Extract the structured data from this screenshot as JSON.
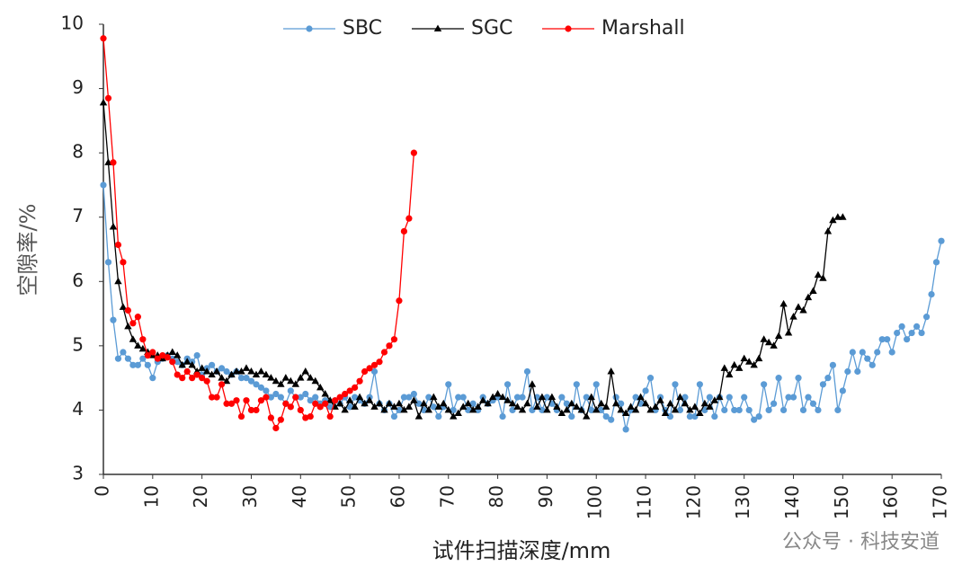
{
  "chart_data": {
    "type": "line",
    "y_label": "空隙率/%",
    "x_label": "试件扫描深度/mm",
    "watermark": "公众号 · 科技安道",
    "legend": "top",
    "grid": false,
    "xlim": [
      0,
      170
    ],
    "xticks": [
      0,
      10,
      20,
      30,
      40,
      50,
      60,
      70,
      80,
      90,
      100,
      110,
      120,
      130,
      140,
      150,
      160,
      170
    ],
    "ylim": [
      3,
      10
    ],
    "yticks": [
      3,
      4,
      5,
      6,
      7,
      8,
      9,
      10
    ],
    "x": [
      0,
      1,
      2,
      3,
      4,
      5,
      6,
      7,
      8,
      9,
      10,
      11,
      12,
      13,
      14,
      15,
      16,
      17,
      18,
      19,
      20,
      21,
      22,
      23,
      24,
      25,
      26,
      27,
      28,
      29,
      30,
      31,
      32,
      33,
      34,
      35,
      36,
      37,
      38,
      39,
      40,
      41,
      42,
      43,
      44,
      45,
      46,
      47,
      48,
      49,
      50,
      51,
      52,
      53,
      54,
      55,
      56,
      57,
      58,
      59,
      60,
      61,
      62,
      63,
      64,
      65,
      66,
      67,
      68,
      69,
      70,
      71,
      72,
      73,
      74,
      75,
      76,
      77,
      78,
      79,
      80,
      81,
      82,
      83,
      84,
      85,
      86,
      87,
      88,
      89,
      90,
      91,
      92,
      93,
      94,
      95,
      96,
      97,
      98,
      99,
      100,
      101,
      102,
      103,
      104,
      105,
      106,
      107,
      108,
      109,
      110,
      111,
      112,
      113,
      114,
      115,
      116,
      117,
      118,
      119,
      120,
      121,
      122,
      123,
      124,
      125,
      126,
      127,
      128,
      129,
      130,
      131,
      132,
      133,
      134,
      135,
      136,
      137,
      138,
      139,
      140,
      141,
      142,
      143,
      144,
      145,
      146,
      147,
      148,
      149,
      150,
      151,
      152,
      153,
      154,
      155,
      156,
      157,
      158,
      159,
      160,
      161,
      162,
      163,
      164,
      165,
      166,
      167,
      168,
      169,
      170
    ],
    "series": [
      {
        "name": "SBC",
        "color": "#5b9bd5",
        "marker": "circle",
        "values": [
          7.5,
          6.3,
          5.4,
          4.8,
          4.9,
          4.8,
          4.7,
          4.7,
          4.8,
          4.7,
          4.5,
          4.75,
          4.8,
          4.85,
          4.8,
          4.75,
          4.7,
          4.8,
          4.75,
          4.85,
          4.55,
          4.65,
          4.7,
          4.6,
          4.65,
          4.6,
          4.55,
          4.6,
          4.5,
          4.5,
          4.45,
          4.4,
          4.35,
          4.3,
          4.2,
          4.25,
          4.2,
          4.1,
          4.3,
          4.2,
          4.2,
          4.25,
          4.15,
          4.2,
          4.1,
          4.15,
          4.05,
          4.15,
          4.1,
          4.2,
          4.05,
          4.2,
          4.15,
          4.1,
          4.2,
          4.6,
          4.1,
          4.0,
          4.1,
          3.9,
          4.0,
          4.2,
          4.2,
          4.25,
          4.1,
          4.0,
          4.2,
          4.05,
          3.9,
          4.05,
          4.4,
          4.0,
          4.2,
          4.2,
          4.0,
          4.1,
          4.0,
          4.2,
          4.1,
          4.15,
          4.2,
          3.9,
          4.4,
          4.0,
          4.2,
          4.2,
          4.6,
          4.0,
          4.2,
          4.0,
          4.2,
          4.1,
          4.0,
          4.2,
          4.1,
          3.9,
          4.4,
          4.0,
          4.2,
          4.0,
          4.4,
          4.0,
          3.9,
          3.85,
          4.2,
          4.1,
          3.7,
          4.0,
          4.2,
          4.1,
          4.3,
          4.5,
          4.0,
          4.2,
          4.0,
          3.9,
          4.4,
          4.0,
          4.2,
          3.9,
          3.9,
          4.4,
          4.0,
          4.2,
          3.9,
          4.2,
          4.0,
          4.2,
          4.0,
          4.0,
          4.2,
          4.0,
          3.85,
          3.9,
          4.4,
          4.0,
          4.1,
          4.5,
          4.0,
          4.2,
          4.2,
          4.5,
          4.0,
          4.2,
          4.1,
          4.0,
          4.4,
          4.5,
          4.7,
          4.0,
          4.3,
          4.6,
          4.9,
          4.6,
          4.9,
          4.8,
          4.7,
          4.9,
          5.1,
          5.1,
          4.9,
          5.2,
          5.3,
          5.1,
          5.2,
          5.3,
          5.2,
          5.45,
          5.8,
          6.3,
          6.63
        ]
      },
      {
        "name": "SGC",
        "color": "#000000",
        "marker": "triangle",
        "values": [
          8.78,
          7.85,
          6.85,
          6.0,
          5.6,
          5.3,
          5.1,
          5.0,
          4.95,
          4.9,
          4.85,
          4.85,
          4.8,
          4.85,
          4.9,
          4.85,
          4.7,
          4.75,
          4.7,
          4.6,
          4.65,
          4.6,
          4.55,
          4.6,
          4.5,
          4.45,
          4.55,
          4.6,
          4.6,
          4.65,
          4.6,
          4.55,
          4.6,
          4.55,
          4.5,
          4.45,
          4.4,
          4.5,
          4.45,
          4.4,
          4.5,
          4.6,
          4.5,
          4.45,
          4.35,
          4.25,
          4.15,
          4.05,
          4.1,
          4.0,
          4.15,
          4.05,
          4.2,
          4.1,
          4.15,
          4.05,
          4.1,
          4.0,
          4.1,
          4.05,
          4.1,
          4.0,
          4.05,
          4.15,
          3.9,
          4.1,
          4.0,
          4.2,
          4.05,
          4.1,
          4.0,
          3.9,
          3.95,
          4.05,
          4.1,
          4.0,
          4.05,
          4.15,
          4.1,
          4.2,
          4.25,
          4.2,
          4.15,
          4.1,
          4.05,
          4.0,
          4.1,
          4.4,
          4.05,
          4.2,
          4.0,
          4.2,
          4.05,
          3.95,
          4.0,
          4.1,
          4.05,
          4.0,
          3.9,
          4.2,
          4.0,
          4.1,
          4.05,
          4.6,
          4.1,
          4.0,
          3.95,
          4.05,
          4.0,
          4.2,
          4.1,
          4.0,
          4.05,
          4.15,
          3.95,
          4.1,
          4.0,
          4.2,
          4.1,
          4.0,
          4.05,
          3.95,
          4.1,
          4.05,
          4.15,
          4.2,
          4.65,
          4.55,
          4.7,
          4.65,
          4.8,
          4.75,
          4.7,
          4.8,
          5.1,
          5.05,
          5.0,
          5.15,
          5.65,
          5.2,
          5.45,
          5.6,
          5.55,
          5.75,
          5.85,
          6.1,
          6.05,
          6.78,
          6.95,
          7.0,
          7.0,
          null,
          null,
          null,
          null,
          null,
          null,
          null,
          null,
          null,
          null,
          null,
          null,
          null,
          null,
          null,
          null,
          null,
          null,
          null,
          null
        ]
      },
      {
        "name": "Marshall",
        "color": "#ff0000",
        "marker": "circle",
        "values": [
          9.78,
          8.85,
          7.85,
          6.57,
          6.3,
          5.55,
          5.35,
          5.45,
          5.1,
          4.85,
          4.9,
          4.8,
          4.85,
          4.82,
          4.75,
          4.55,
          4.5,
          4.6,
          4.5,
          4.55,
          4.5,
          4.45,
          4.2,
          4.2,
          4.4,
          4.1,
          4.1,
          4.15,
          3.9,
          4.15,
          4.0,
          4.0,
          4.15,
          4.2,
          3.88,
          3.72,
          3.85,
          4.1,
          4.05,
          4.2,
          4.0,
          3.88,
          3.9,
          4.1,
          4.05,
          4.1,
          3.9,
          4.15,
          4.2,
          4.25,
          4.3,
          4.35,
          4.45,
          4.6,
          4.65,
          4.7,
          4.75,
          4.9,
          5.0,
          5.1,
          5.7,
          6.78,
          6.98,
          8.0,
          null,
          null,
          null,
          null,
          null,
          null,
          null,
          null,
          null,
          null,
          null,
          null,
          null,
          null,
          null,
          null,
          null,
          null,
          null,
          null,
          null,
          null,
          null,
          null,
          null,
          null,
          null,
          null,
          null,
          null,
          null,
          null,
          null,
          null,
          null,
          null,
          null,
          null,
          null,
          null,
          null,
          null,
          null,
          null,
          null,
          null,
          null,
          null,
          null,
          null,
          null,
          null,
          null,
          null,
          null,
          null,
          null,
          null,
          null,
          null,
          null,
          null,
          null,
          null,
          null,
          null,
          null,
          null,
          null,
          null,
          null,
          null,
          null,
          null,
          null,
          null,
          null,
          null,
          null,
          null,
          null,
          null,
          null,
          null,
          null,
          null,
          null,
          null,
          null,
          null,
          null,
          null,
          null,
          null,
          null,
          null,
          null,
          null,
          null,
          null,
          null,
          null,
          null,
          null,
          null,
          null,
          null
        ]
      }
    ]
  }
}
